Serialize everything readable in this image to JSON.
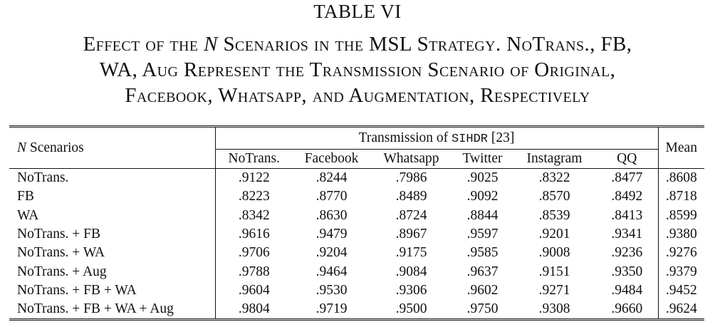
{
  "table_label": "TABLE VI",
  "caption": {
    "line1_pre": "Effect of the ",
    "line1_var": "N",
    "line1_post": " Scenarios in the MSL Strategy. NoTrans., FB,",
    "line2": "WA, Aug Represent the Transmission Scenario of Original,",
    "line3": "Facebook, Whatsapp, and Augmentation, Respectively"
  },
  "header": {
    "scenarios_var": "N",
    "scenarios_label": "Scenarios",
    "group_pre": "Transmission of ",
    "group_method": "SIHDR",
    "group_ref": " [23]",
    "mean": "Mean",
    "columns": [
      "NoTrans.",
      "Facebook",
      "Whatsapp",
      "Twitter",
      "Instagram",
      "QQ"
    ]
  },
  "rows": [
    {
      "label": "NoTrans.",
      "values": [
        ".9122",
        ".8244",
        ".7986",
        ".9025",
        ".8322",
        ".8477"
      ],
      "mean": ".8608"
    },
    {
      "label": "FB",
      "values": [
        ".8223",
        ".8770",
        ".8489",
        ".9092",
        ".8570",
        ".8492"
      ],
      "mean": ".8718"
    },
    {
      "label": "WA",
      "values": [
        ".8342",
        ".8630",
        ".8724",
        ".8844",
        ".8539",
        ".8413"
      ],
      "mean": ".8599"
    },
    {
      "label": "NoTrans. + FB",
      "values": [
        ".9616",
        ".9479",
        ".8967",
        ".9597",
        ".9201",
        ".9341"
      ],
      "mean": ".9380"
    },
    {
      "label": "NoTrans. + WA",
      "values": [
        ".9706",
        ".9204",
        ".9175",
        ".9585",
        ".9008",
        ".9236"
      ],
      "mean": ".9276"
    },
    {
      "label": "NoTrans. + Aug",
      "values": [
        ".9788",
        ".9464",
        ".9084",
        ".9637",
        ".9151",
        ".9350"
      ],
      "mean": ".9379"
    },
    {
      "label": "NoTrans. + FB + WA",
      "values": [
        ".9604",
        ".9530",
        ".9306",
        ".9602",
        ".9271",
        ".9484"
      ],
      "mean": ".9452"
    },
    {
      "label": "NoTrans. + FB + WA + Aug",
      "values": [
        ".9804",
        ".9719",
        ".9500",
        ".9750",
        ".9308",
        ".9660"
      ],
      "mean": ".9624"
    }
  ]
}
